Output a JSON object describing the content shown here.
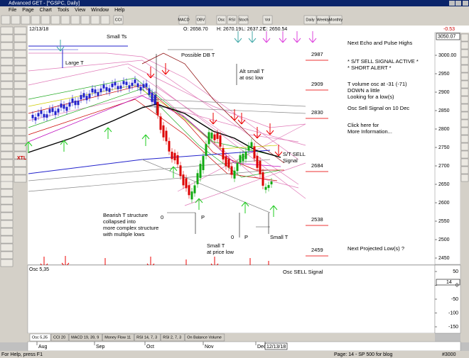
{
  "window": {
    "title": "Advanced GET - [^GSPC, Daily]"
  },
  "menu": [
    "File",
    "Page",
    "Chart",
    "Tools",
    "View",
    "Window",
    "Help"
  ],
  "toolbar": [
    "CCI",
    "MACD",
    "OBV",
    "Osc",
    "RSI",
    "Stoch",
    "Vol",
    "Daily",
    "Weekly",
    "Monthly"
  ],
  "left_toolbar": {
    "xtl": "XTL"
  },
  "quote": {
    "date": "12/13/18",
    "open": "O: 2658.70",
    "high": "H: 2670.19",
    "low": "L: 2637.27",
    "close": "C: 2650.54",
    "change": "-0.53"
  },
  "price_axis": {
    "current": "3050.07",
    "ticks": [
      "3000.00",
      "2950",
      "2900",
      "2850",
      "2800",
      "2750",
      "2700",
      "2650",
      "2600",
      "2550",
      "2500",
      "2450"
    ]
  },
  "levels": [
    "2987",
    "2909",
    "2830",
    "2684",
    "2538",
    "2459"
  ],
  "annotations": {
    "small_ts": "Small Ts",
    "large_t": "Large T",
    "possible_db_t": "Possible DB T",
    "alt_small_t": [
      "Alt small T",
      "at osc low"
    ],
    "st_sell": [
      "S/T SELL",
      "Signal"
    ],
    "bearish": [
      "Bearish T structure",
      "collapsed into",
      "more complex structure",
      "with multiple lows"
    ],
    "zero_1": "0",
    "p_1": "P",
    "zero_2": "0",
    "p_2": "P",
    "small_t": "Small T",
    "small_t_price_low": [
      "Small T",
      "at price low"
    ]
  },
  "notes": {
    "echo": "Next Echo and Pulse Highs",
    "signal": [
      "* S/T SELL SIGNAL ACTIVE *",
      "* SHORT ALERT *"
    ],
    "volume": [
      "T volume osc at -31 (-71)",
      "DOWN a little",
      "Looking for a low(s)"
    ],
    "osc_sell": "Osc Sell Signal on 10 Dec",
    "click": [
      "Click here for",
      "More Information..."
    ],
    "next_low": "Next Projected Low(s) ?"
  },
  "oscillator": {
    "label": "Osc 5,35",
    "signal": "Osc SELL Signal",
    "current": "14",
    "ticks": [
      "50",
      "0",
      "-50",
      "-100",
      "-150"
    ]
  },
  "tabs": [
    "Osc 5,35",
    "CCI 20",
    "MACD 19, 39, 9",
    "Money Flow 11",
    "RSI 14, 7, 3",
    "RSI 2, 7, 3",
    "On Balance Volume"
  ],
  "dates": [
    "Aug",
    "Sep",
    "Oct",
    "Nov",
    "Dec",
    "12/13/18"
  ],
  "status": {
    "help": "For Help, press F1",
    "page": "Page: 14 - SP 500 for blog",
    "symbol": "#3000"
  }
}
